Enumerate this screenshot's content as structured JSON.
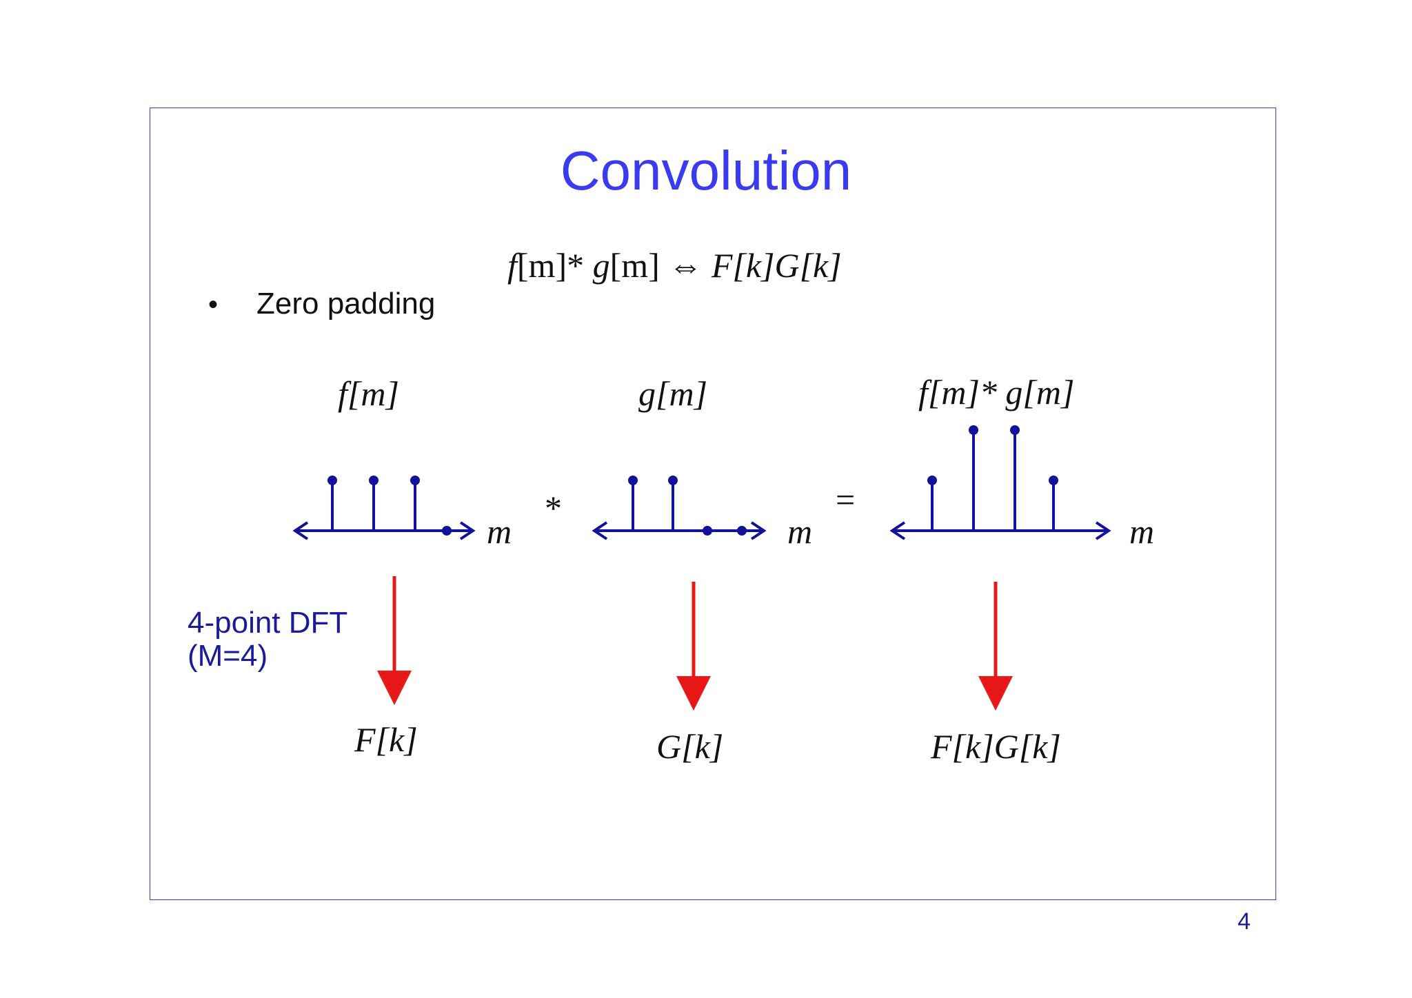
{
  "slide": {
    "title": "Convolution",
    "bullet": "Zero padding",
    "dft_label_line1": "4-point DFT",
    "dft_label_line2": "(M=4)",
    "page_number": "4"
  },
  "equation": {
    "lhs_f": "f",
    "lhs_f_arg": "[m]",
    "conv_op": "*",
    "lhs_g": "g",
    "lhs_g_arg": "[m]",
    "equiv": "⇔",
    "rhs": "F[k]G[k]"
  },
  "panels": {
    "f": {
      "label": "f[m]",
      "axis_label": "m",
      "values": [
        1,
        1,
        1,
        0
      ],
      "result": "F[k]"
    },
    "g": {
      "label": "g[m]",
      "axis_label": "m",
      "values": [
        1,
        1,
        0,
        0
      ],
      "result": "G[k]"
    },
    "fg": {
      "label": "f[m]* g[m]",
      "axis_label": "m",
      "values": [
        1,
        2,
        2,
        1
      ],
      "result": "F[k]G[k]"
    }
  },
  "operators": {
    "star": "*",
    "equals": "="
  },
  "colors": {
    "title": "#3a3af0",
    "stem": "#12129a",
    "arrow": "#e81818",
    "frame": "#3a3ad6",
    "dft_label": "#1a1a9a"
  }
}
